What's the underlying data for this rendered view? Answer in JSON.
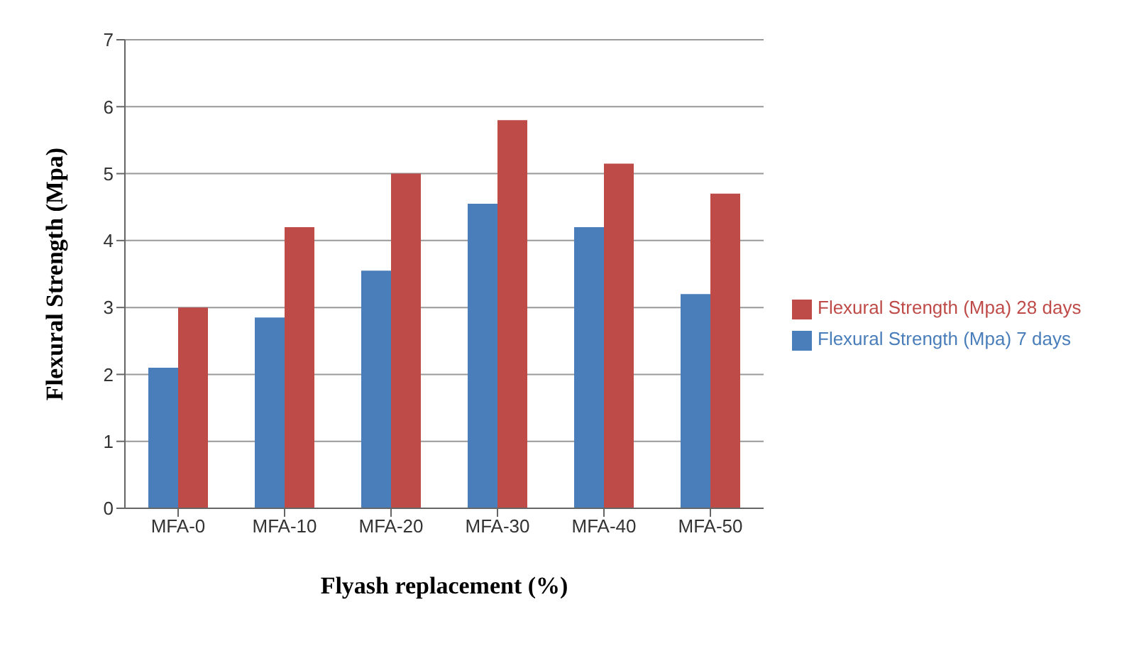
{
  "chart_data": {
    "type": "bar",
    "xlabel": "Flyash replacement (%)",
    "ylabel": "Flexural Strength (Mpa)",
    "categories": [
      "MFA-0",
      "MFA-10",
      "MFA-20",
      "MFA-30",
      "MFA-40",
      "MFA-50"
    ],
    "series": [
      {
        "name": "Flexural Strength (Mpa) 7 days",
        "color": "#4a7ebb",
        "values": [
          2.1,
          2.85,
          3.55,
          4.55,
          4.2,
          3.2
        ]
      },
      {
        "name": "Flexural Strength (Mpa) 28 days",
        "color": "#be4b48",
        "values": [
          3.0,
          4.2,
          5.0,
          5.8,
          5.15,
          4.7
        ]
      }
    ],
    "ylim": [
      0,
      7
    ],
    "yticks": [
      0,
      1,
      2,
      3,
      4,
      5,
      6,
      7
    ],
    "grid": "y",
    "legend": "right"
  }
}
